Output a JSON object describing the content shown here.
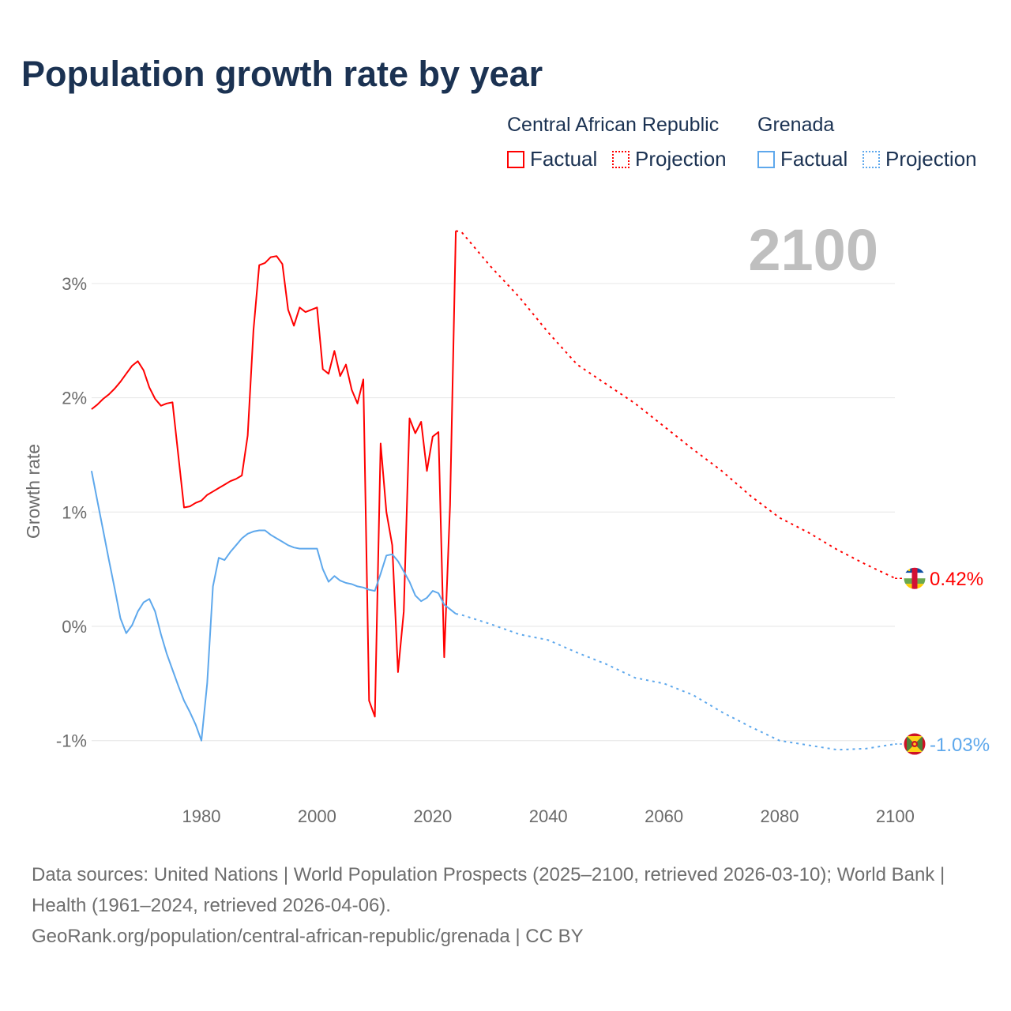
{
  "title": "Population growth rate by year",
  "legend": {
    "groups": [
      {
        "country": "Central African Republic",
        "factual": "Factual",
        "projection": "Projection",
        "color": "#ff0000"
      },
      {
        "country": "Grenada",
        "factual": "Factual",
        "projection": "Projection",
        "color": "#5ea8ec"
      }
    ]
  },
  "chart_data": {
    "type": "line",
    "title": "Population growth rate by year",
    "ylabel": "Growth rate",
    "xlabel": "",
    "year_label": "2100",
    "xlim": [
      1961,
      2100
    ],
    "ylim": [
      -1.5,
      3.6
    ],
    "x_ticks": [
      "1980",
      "2000",
      "2020",
      "2040",
      "2060",
      "2080",
      "2100"
    ],
    "y_ticks": [
      "3%",
      "2%",
      "1%",
      "0%",
      "-1%"
    ],
    "y_tick_values": [
      3,
      2,
      1,
      0,
      -1
    ],
    "grid": true,
    "series": [
      {
        "name": "Central African Republic Factual",
        "color": "#ff0000",
        "style": "solid",
        "start_year": 1961,
        "values": [
          1.9,
          1.94,
          1.99,
          2.03,
          2.08,
          2.14,
          2.21,
          2.28,
          2.32,
          2.24,
          2.09,
          1.99,
          1.93,
          1.95,
          1.96,
          1.5,
          1.04,
          1.05,
          1.08,
          1.1,
          1.15,
          1.18,
          1.21,
          1.24,
          1.27,
          1.29,
          1.32,
          1.67,
          2.59,
          3.16,
          3.18,
          3.23,
          3.24,
          3.17,
          2.77,
          2.63,
          2.79,
          2.75,
          2.77,
          2.79,
          2.25,
          2.21,
          2.41,
          2.19,
          2.29,
          2.07,
          1.95,
          2.16,
          -0.65,
          -0.79,
          1.6,
          1.0,
          0.71,
          -0.4,
          0.13,
          1.82,
          1.69,
          1.79,
          1.36,
          1.66,
          1.7,
          -0.27,
          1.06,
          3.46
        ]
      },
      {
        "name": "Central African Republic Projection",
        "color": "#ff0000",
        "style": "dotted",
        "x": [
          2024,
          2025,
          2030,
          2035,
          2040,
          2045,
          2050,
          2055,
          2060,
          2065,
          2070,
          2075,
          2080,
          2085,
          2090,
          2095,
          2100
        ],
        "values": [
          3.46,
          3.45,
          3.15,
          2.88,
          2.57,
          2.29,
          2.12,
          1.95,
          1.75,
          1.55,
          1.36,
          1.14,
          0.95,
          0.82,
          0.67,
          0.54,
          0.42
        ]
      },
      {
        "name": "Grenada Factual",
        "color": "#5ea8ec",
        "style": "solid",
        "start_year": 1961,
        "values": [
          1.36,
          1.1,
          0.84,
          0.58,
          0.33,
          0.07,
          -0.06,
          0.01,
          0.13,
          0.21,
          0.24,
          0.13,
          -0.07,
          -0.24,
          -0.38,
          -0.52,
          -0.65,
          -0.75,
          -0.86,
          -1.0,
          -0.5,
          0.35,
          0.6,
          0.58,
          0.65,
          0.71,
          0.77,
          0.81,
          0.83,
          0.84,
          0.84,
          0.8,
          0.77,
          0.74,
          0.71,
          0.69,
          0.68,
          0.68,
          0.68,
          0.68,
          0.5,
          0.39,
          0.44,
          0.4,
          0.38,
          0.37,
          0.35,
          0.34,
          0.32,
          0.31,
          0.46,
          0.62,
          0.63,
          0.57,
          0.48,
          0.39,
          0.27,
          0.22,
          0.25,
          0.31,
          0.29,
          0.19,
          0.15,
          0.11
        ]
      },
      {
        "name": "Grenada Projection",
        "color": "#5ea8ec",
        "style": "dotted",
        "x": [
          2024,
          2025,
          2030,
          2035,
          2040,
          2045,
          2050,
          2055,
          2060,
          2065,
          2070,
          2075,
          2080,
          2085,
          2090,
          2095,
          2100
        ],
        "values": [
          0.11,
          0.1,
          0.02,
          -0.07,
          -0.12,
          -0.23,
          -0.33,
          -0.45,
          -0.5,
          -0.6,
          -0.75,
          -0.88,
          -1.0,
          -1.04,
          -1.08,
          -1.07,
          -1.03
        ]
      }
    ],
    "end_labels": [
      {
        "country": "Central African Republic",
        "text": "0.42%",
        "value": 0.42,
        "color": "#ff0000",
        "flag": "central-african-republic-flag"
      },
      {
        "country": "Grenada",
        "text": "-1.03%",
        "value": -1.03,
        "color": "#5ea8ec",
        "flag": "grenada-flag"
      }
    ]
  },
  "footer": {
    "sources": "Data sources: United Nations | World Population Prospects (2025–2100, retrieved 2026-03-10); World Bank | Health (1961–2024, retrieved 2026-04-06).",
    "link": "GeoRank.org/population/central-african-republic/grenada | CC BY"
  }
}
